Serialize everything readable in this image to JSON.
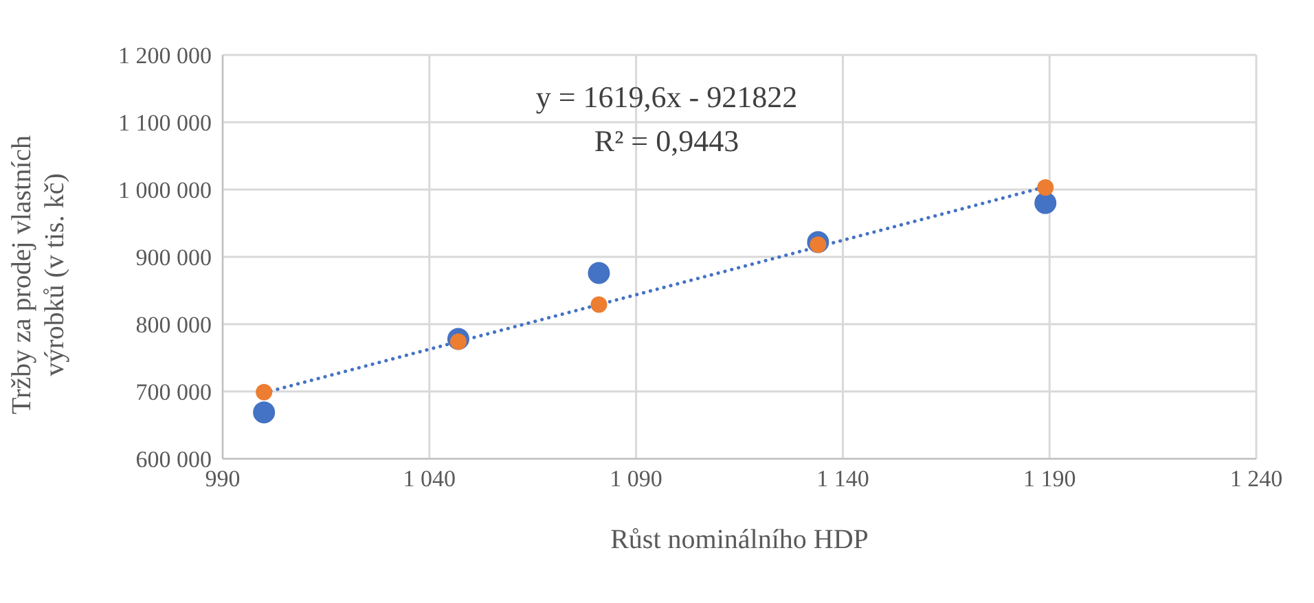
{
  "chart_data": {
    "type": "scatter",
    "xlabel": "Růst nominálního HDP",
    "ylabel": "Tržby  za prodej vlastních výrobků  (v tis. kč)",
    "annotations": [
      "y = 1619,6x - 921822",
      "R² = 0,9443"
    ],
    "x": [
      1000,
      1047,
      1081,
      1134,
      1189
    ],
    "series": [
      {
        "color": "#4472c4",
        "values": [
          669000,
          778000,
          876000,
          922000,
          980000
        ]
      },
      {
        "color": "#ed7d31",
        "values": [
          699000,
          774000,
          829000,
          918000,
          1003000
        ]
      },
      {
        "type": "line",
        "color": "#4472c4",
        "line_style": "dotted",
        "marker": "none",
        "x": [
          1000,
          1189
        ],
        "values": [
          698000,
          1004000
        ]
      }
    ],
    "xlim": [
      990,
      1240
    ],
    "xticks": [
      990,
      {
        "value": 1040,
        "label": "1 040"
      },
      {
        "value": 1090,
        "label": "1 090"
      },
      {
        "value": 1140,
        "label": "1 140"
      },
      {
        "value": 1190,
        "label": "1 190"
      },
      {
        "value": 1240,
        "label": "1 240"
      }
    ],
    "ylim": [
      600000,
      1200000
    ],
    "yticks": [
      {
        "value": 600000,
        "label": "600 000"
      },
      {
        "value": 700000,
        "label": "700 000"
      },
      {
        "value": 800000,
        "label": "800 000"
      },
      {
        "value": 900000,
        "label": "900 000"
      },
      {
        "value": 1000000,
        "label": "1 000 000"
      },
      {
        "value": 1100000,
        "label": "1 100 000"
      },
      {
        "value": 1200000,
        "label": "1 200 000"
      }
    ],
    "grid": true,
    "marker": "circle"
  }
}
